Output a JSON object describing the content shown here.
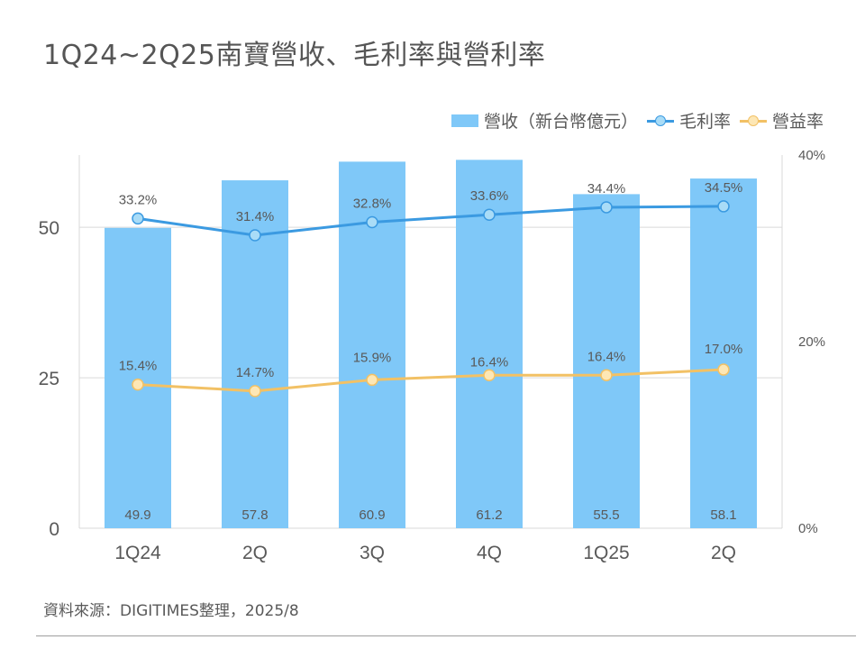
{
  "title": "1Q24~2Q25南寶營收、毛利率與營利率",
  "source": "資料來源：DIGITIMES整理，2025/8",
  "colors": {
    "bar": "#7fc8f8",
    "gross_margin": "#3b9ae1",
    "gross_margin_fill": "#a9dcf7",
    "op_margin": "#f2c165",
    "op_margin_fill": "#fde7b5",
    "grid": "#d9d9d9",
    "axis_text": "#595959",
    "label_text": "#595959"
  },
  "chart_data": {
    "type": "bar",
    "categories": [
      "1Q24",
      "2Q",
      "3Q",
      "4Q",
      "1Q25",
      "2Q"
    ],
    "series": [
      {
        "name": "營收（新台幣億元）",
        "type": "bar",
        "axis": "left",
        "values": [
          49.9,
          57.8,
          60.9,
          61.2,
          55.5,
          58.1
        ]
      },
      {
        "name": "毛利率",
        "type": "line",
        "axis": "right",
        "values": [
          33.2,
          31.4,
          32.8,
          33.6,
          34.4,
          34.5
        ],
        "labels": [
          "33.2%",
          "31.4%",
          "32.8%",
          "33.6%",
          "34.4%",
          "34.5%"
        ]
      },
      {
        "name": "營益率",
        "type": "line",
        "axis": "right",
        "values": [
          15.4,
          14.7,
          15.9,
          16.4,
          16.4,
          17.0
        ],
        "labels": [
          "15.4%",
          "14.7%",
          "15.9%",
          "16.4%",
          "16.4%",
          "17.0%"
        ]
      }
    ],
    "y_left": {
      "ticks": [
        0,
        25,
        50
      ],
      "tick_labels": [
        "0",
        "25",
        "50"
      ],
      "range": [
        0,
        62
      ]
    },
    "y_right": {
      "ticks": [
        0,
        20,
        40
      ],
      "tick_labels": [
        "0%",
        "20%",
        "40%"
      ],
      "range": [
        0,
        40
      ]
    },
    "grid": true,
    "legend_position": "top-right"
  }
}
